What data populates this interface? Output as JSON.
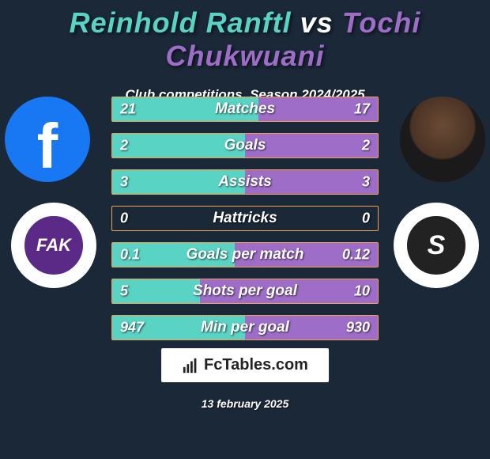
{
  "title": {
    "player1": "Reinhold Ranftl",
    "vs": "vs",
    "player2": "Tochi Chukwuani"
  },
  "subtitle": "Club competitions, Season 2024/2025",
  "colors": {
    "player1": "#59d3c3",
    "player2": "#9e6dc8",
    "bar_border": "#f0a050",
    "background": "#1a2838",
    "text": "#ffffff"
  },
  "player1_club": {
    "name": "FK Austria Wien",
    "badge_text": "FAK",
    "badge_bg": "#5b2a86",
    "badge_ring": "#ffffff"
  },
  "player2_club": {
    "name": "SK Sturm Graz",
    "badge_text": "S",
    "badge_bg": "#222222",
    "badge_ring": "#ffffff"
  },
  "stats": [
    {
      "label": "Matches",
      "v1": "21",
      "v2": "17",
      "w1": 55,
      "w2": 45
    },
    {
      "label": "Goals",
      "v1": "2",
      "v2": "2",
      "w1": 50,
      "w2": 50
    },
    {
      "label": "Assists",
      "v1": "3",
      "v2": "3",
      "w1": 50,
      "w2": 50
    },
    {
      "label": "Hattricks",
      "v1": "0",
      "v2": "0",
      "w1": 0,
      "w2": 0
    },
    {
      "label": "Goals per match",
      "v1": "0.1",
      "v2": "0.12",
      "w1": 46,
      "w2": 54
    },
    {
      "label": "Shots per goal",
      "v1": "5",
      "v2": "10",
      "w1": 33,
      "w2": 67
    },
    {
      "label": "Min per goal",
      "v1": "947",
      "v2": "930",
      "w1": 50,
      "w2": 50
    }
  ],
  "brand": "FcTables.com",
  "date": "13 february 2025"
}
